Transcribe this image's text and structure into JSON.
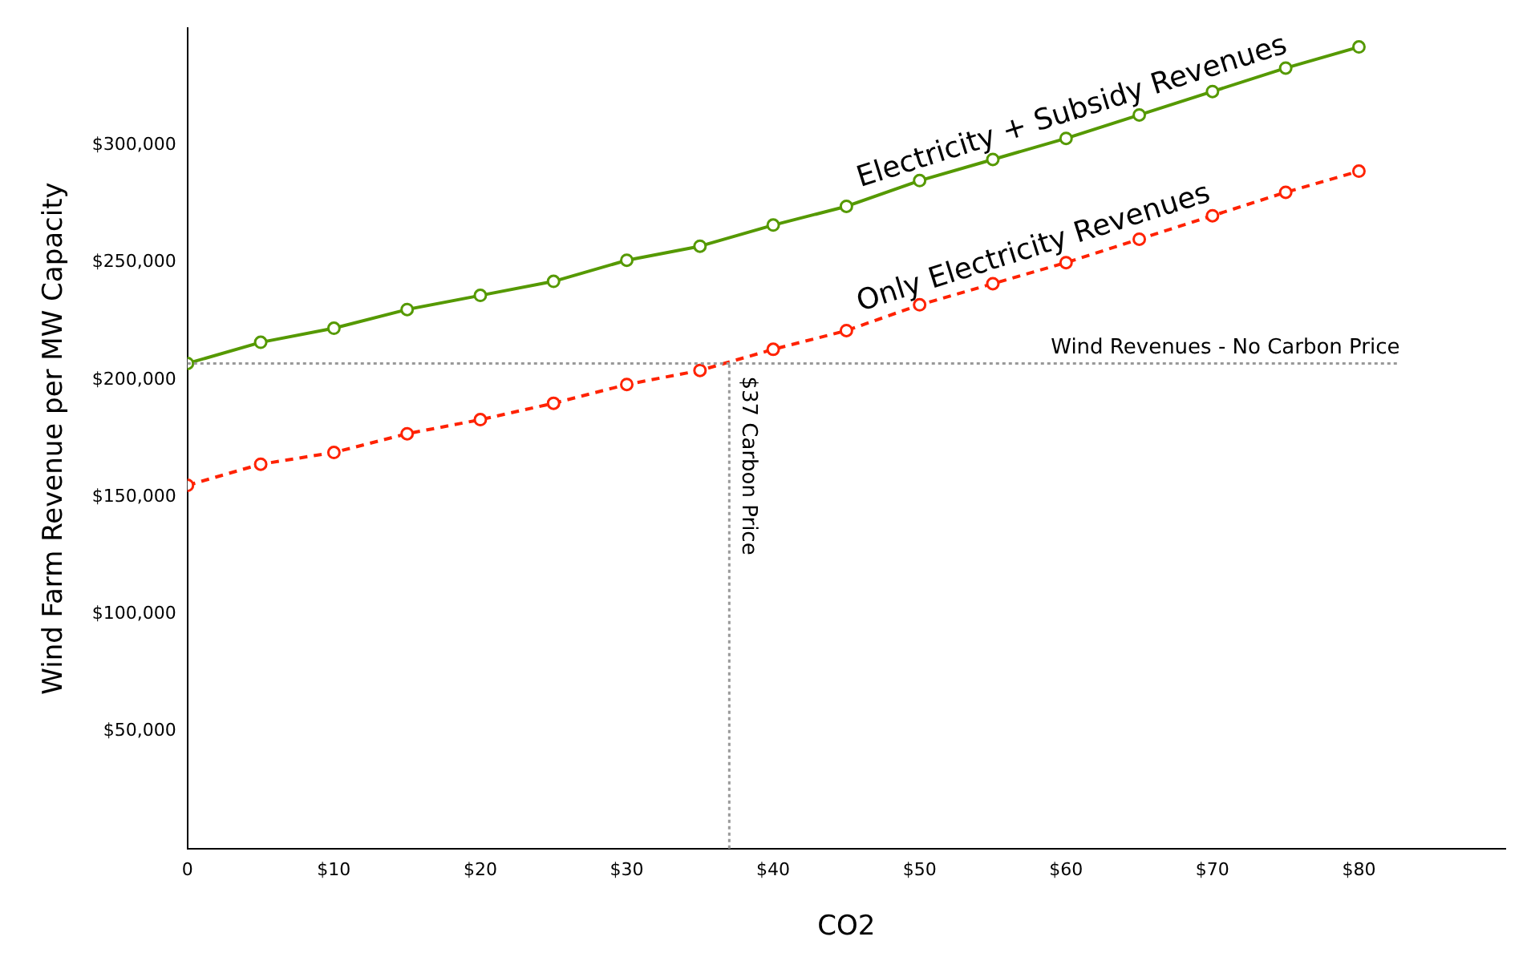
{
  "chart_data": {
    "type": "line",
    "xlabel": "CO2",
    "ylabel": "Wind Farm Revenue per MW Capacity",
    "x": [
      0,
      5,
      10,
      15,
      20,
      25,
      30,
      35,
      40,
      45,
      50,
      55,
      60,
      65,
      70,
      75,
      80
    ],
    "series": [
      {
        "name": "Electricity + Subsidy Revenues",
        "color": "#559900",
        "line_style": "solid",
        "values": [
          207000,
          216000,
          222000,
          230000,
          236000,
          242000,
          251000,
          257000,
          266000,
          274000,
          285000,
          294000,
          303000,
          313000,
          323000,
          333000,
          342000
        ]
      },
      {
        "name": "Only Electricity Revenues",
        "color": "#ff2200",
        "line_style": "dashed",
        "values": [
          155000,
          164000,
          169000,
          177000,
          183000,
          190000,
          198000,
          204000,
          213000,
          221000,
          232000,
          241000,
          250000,
          260000,
          270000,
          280000,
          289000
        ]
      }
    ],
    "xlim": [
      0,
      90
    ],
    "xticks": [
      0,
      {
        "value": 10,
        "label": "$10"
      },
      {
        "value": 20,
        "label": "$20"
      },
      {
        "value": 30,
        "label": "$30"
      },
      {
        "value": 40,
        "label": "$40"
      },
      {
        "value": 50,
        "label": "$50"
      },
      {
        "value": 60,
        "label": "$60"
      },
      {
        "value": 70,
        "label": "$70"
      },
      {
        "value": 80,
        "label": "$80"
      }
    ],
    "ylim": [
      0,
      350000
    ],
    "yticks": [
      {
        "value": 50000,
        "label": "$50,000"
      },
      {
        "value": 100000,
        "label": "$100,000"
      },
      {
        "value": 150000,
        "label": "$150,000"
      },
      {
        "value": 200000,
        "label": "$200,000"
      },
      {
        "value": 250000,
        "label": "$250,000"
      },
      {
        "value": 300000,
        "label": "$300,000"
      }
    ],
    "ref_lines": [
      {
        "axis": "y",
        "value": 207000,
        "label": "Wind Revenues - No Carbon Price",
        "color": "#999999",
        "line_style": "dotted"
      },
      {
        "axis": "x",
        "value": 37,
        "label": "$37 Carbon Price",
        "color": "#999999",
        "line_style": "dotted"
      }
    ],
    "marker": "circle",
    "grid": false,
    "legend": false
  }
}
